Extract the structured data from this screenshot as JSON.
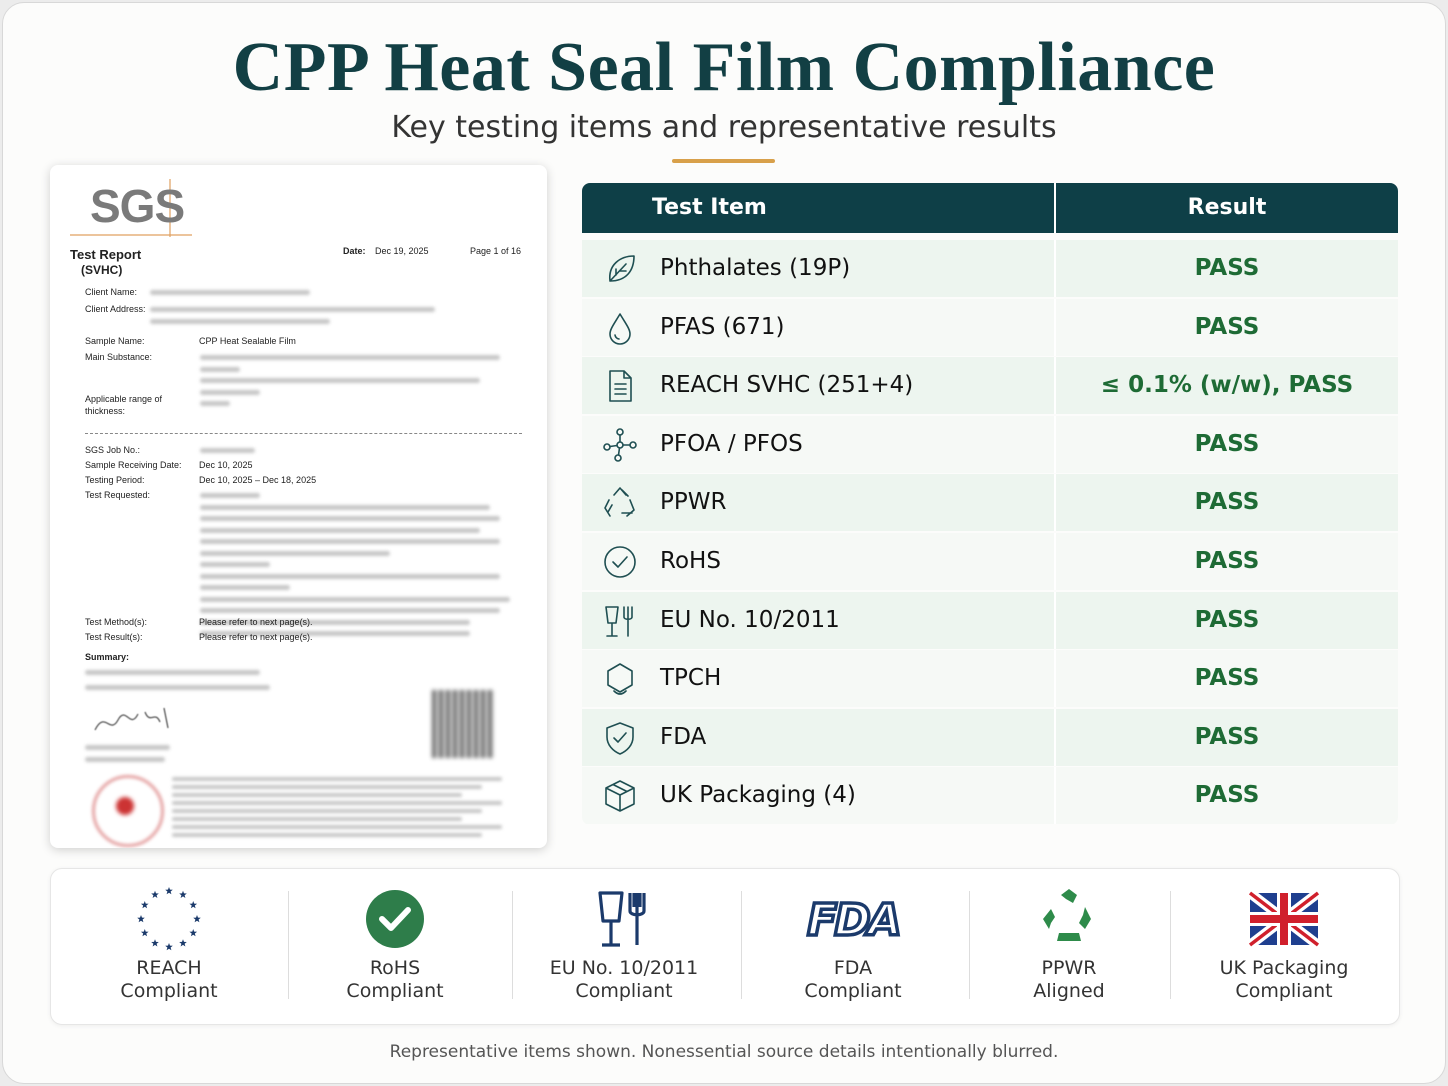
{
  "header": {
    "title": "CPP Heat Seal Film Compliance",
    "subtitle": "Key testing items and representative results"
  },
  "report": {
    "logo": "SGS",
    "title": "Test Report",
    "subtitle": "(SVHC)",
    "date_label": "Date:",
    "date": "Dec 19, 2025",
    "page": "Page 1 of 16",
    "fields": [
      {
        "label": "Client Name:"
      },
      {
        "label": "Client Address:"
      },
      {
        "label": "Sample Name:",
        "value": "CPP Heat Sealable Film"
      },
      {
        "label": "Main Substance:"
      },
      {
        "label": "Applicable range of thickness:"
      },
      {
        "label": "SGS Job No.:"
      },
      {
        "label": "Sample Receiving Date:",
        "value": "Dec 10, 2025"
      },
      {
        "label": "Testing Period:",
        "value": "Dec 10, 2025 – Dec 18, 2025"
      },
      {
        "label": "Test Requested:"
      },
      {
        "label": "Test Method(s):",
        "value": "Please refer to next page(s)."
      },
      {
        "label": "Test Result(s):",
        "value": "Please refer to next page(s)."
      },
      {
        "label": "Summary:"
      }
    ]
  },
  "table": {
    "columns": [
      "Test Item",
      "Result"
    ],
    "rows": [
      [
        "Phthalates (19P)",
        "PASS"
      ],
      [
        "PFAS (671)",
        "PASS"
      ],
      [
        "REACH SVHC (251+4)",
        "≤ 0.1% (w/w), PASS"
      ],
      [
        "PFOA / PFOS",
        "PASS"
      ],
      [
        "PPWR",
        "PASS"
      ],
      [
        "RoHS",
        "PASS"
      ],
      [
        "EU No. 10/2011",
        "PASS"
      ],
      [
        "TPCH",
        "PASS"
      ],
      [
        "FDA",
        "PASS"
      ],
      [
        "UK Packaging (4)",
        "PASS"
      ]
    ]
  },
  "badges": [
    {
      "lines": [
        "REACH",
        "Compliant"
      ]
    },
    {
      "lines": [
        "RoHS",
        "Compliant"
      ]
    },
    {
      "lines": [
        "EU No. 10/2011",
        "Compliant"
      ]
    },
    {
      "logo": "FDA",
      "lines": [
        "FDA",
        "Compliant"
      ]
    },
    {
      "lines": [
        "PPWR",
        "Aligned"
      ]
    },
    {
      "lines": [
        "UK Packaging",
        "Compliant"
      ]
    }
  ],
  "footnote": "Representative items shown.  Nonessential source details intentionally blurred."
}
